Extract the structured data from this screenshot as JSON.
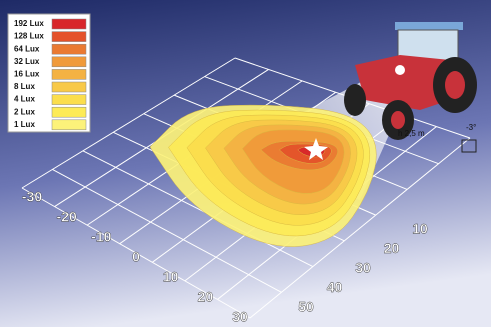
{
  "legend": {
    "items": [
      {
        "label": "192 Lux",
        "color": "#d8262a"
      },
      {
        "label": "128 Lux",
        "color": "#e4522a"
      },
      {
        "label": "64 Lux",
        "color": "#ea7a32"
      },
      {
        "label": "32 Lux",
        "color": "#f09a3a"
      },
      {
        "label": "16 Lux",
        "color": "#f4b243"
      },
      {
        "label": "8 Lux",
        "color": "#f8c948"
      },
      {
        "label": "4 Lux",
        "color": "#fbde4c"
      },
      {
        "label": "2 Lux",
        "color": "#fdeb57"
      },
      {
        "label": "1 Lux",
        "color": "#fcf27a"
      }
    ]
  },
  "axis_left": {
    "labels": [
      "-30",
      "-20",
      "-10",
      "0",
      "10",
      "20",
      "30"
    ]
  },
  "axis_right": {
    "labels": [
      "10",
      "20",
      "30",
      "40",
      "50"
    ]
  },
  "annotation": {
    "height": "h 2,5 m",
    "angle": "-3°"
  }
}
